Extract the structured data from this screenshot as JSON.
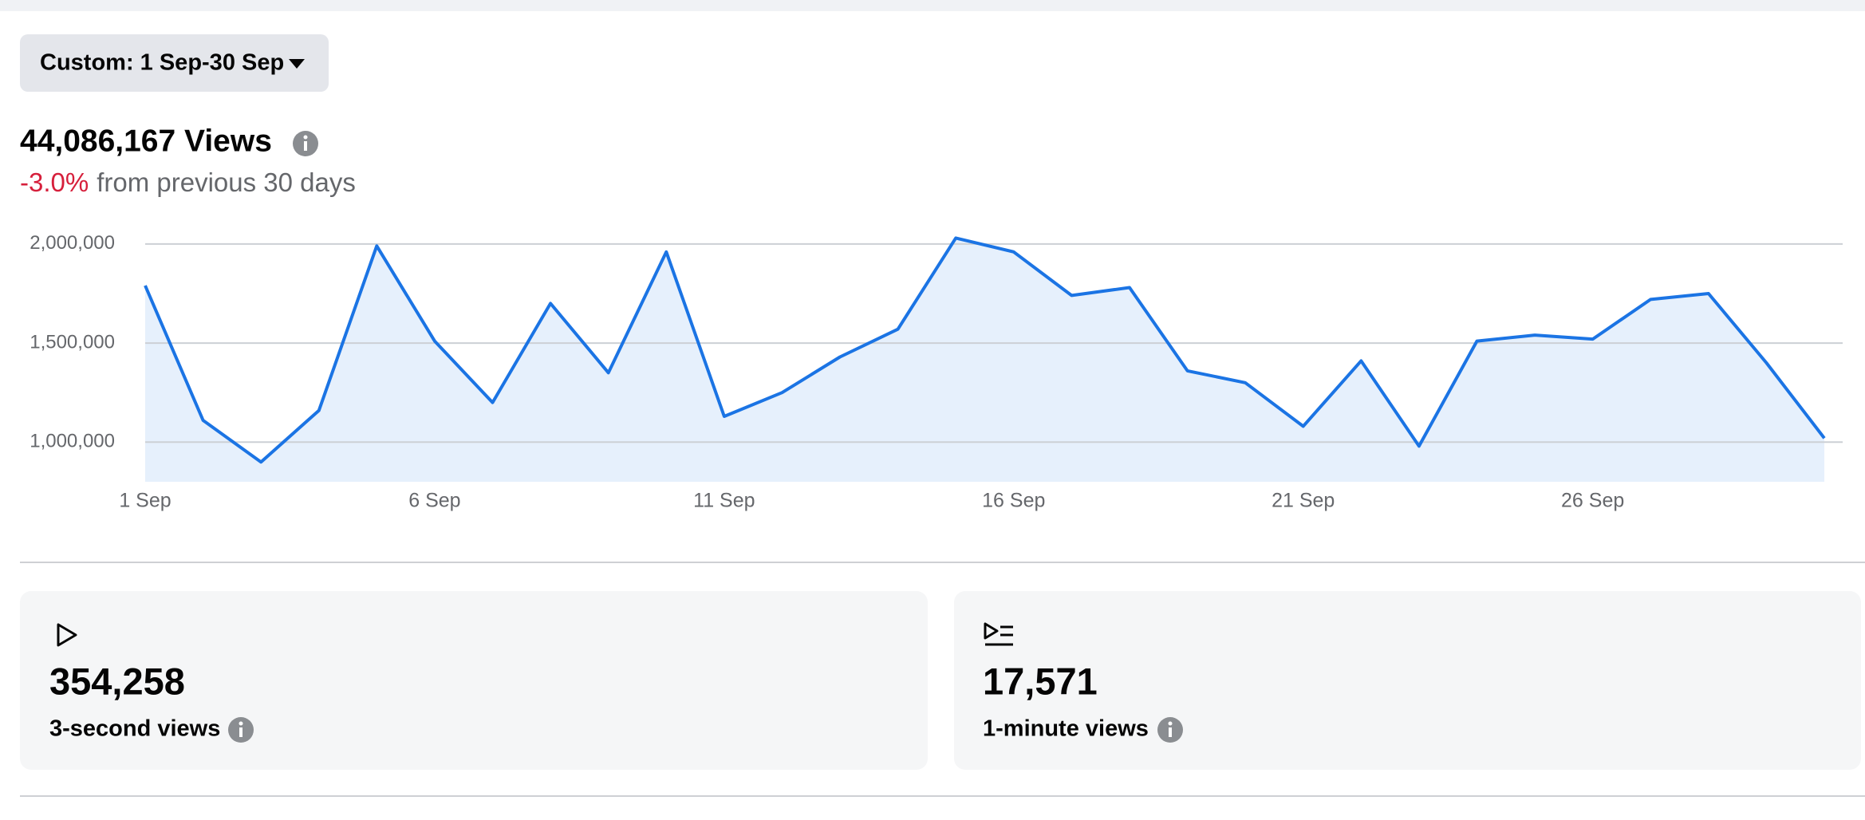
{
  "header": {
    "date_range": "Custom: 1 Sep-30 Sep"
  },
  "summary": {
    "total": "44,086,167 Views",
    "change": "-3.0%",
    "change_text": "from previous 30 days"
  },
  "chart_data": {
    "type": "area",
    "categories": [
      "1 Sep",
      null,
      null,
      null,
      null,
      "6 Sep",
      null,
      null,
      null,
      null,
      "11 Sep",
      null,
      null,
      null,
      null,
      "16 Sep",
      null,
      null,
      null,
      null,
      "21 Sep",
      null,
      null,
      null,
      null,
      "26 Sep",
      null,
      null,
      null,
      null
    ],
    "values": [
      1790000,
      1110000,
      900000,
      1160000,
      1990000,
      1510000,
      1200000,
      1700000,
      1350000,
      1960000,
      1130000,
      1250000,
      1430000,
      1570000,
      2030000,
      1960000,
      1740000,
      1780000,
      1360000,
      1300000,
      1080000,
      1410000,
      980000,
      1510000,
      1540000,
      1520000,
      1720000,
      1750000,
      1400000,
      1020000
    ],
    "color": "#1b74e4",
    "fill": "#e6f0fc",
    "ylim": [
      800000,
      2100000
    ],
    "yticks": [
      {
        "value": 1000000,
        "label": "1,000,000"
      },
      {
        "value": 1500000,
        "label": "1,500,000"
      },
      {
        "value": 2000000,
        "label": "2,000,000"
      }
    ],
    "grid": true
  },
  "cards": [
    {
      "value": "354,258",
      "label": "3-second views"
    },
    {
      "value": "17,571",
      "label": "1-minute views"
    }
  ]
}
